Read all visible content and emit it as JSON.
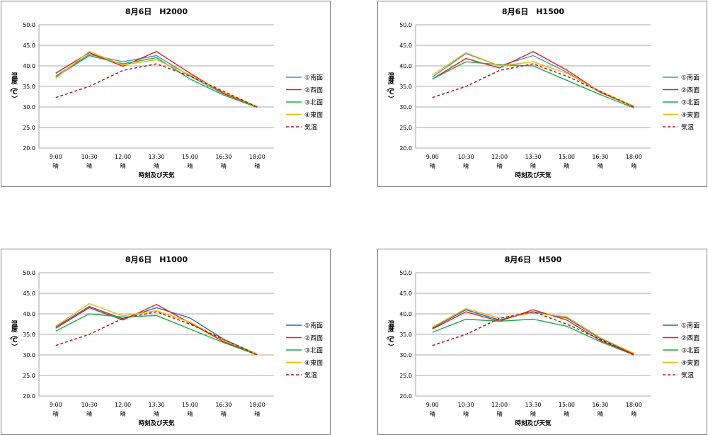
{
  "chart_data": [
    {
      "type": "line",
      "title": "8月6日　H2000",
      "xlabel": "時刻及び天気",
      "ylabel": "温度（℃）",
      "ylim": [
        20,
        50
      ],
      "yticks": [
        "20.0",
        "25.0",
        "30.0",
        "35.0",
        "40.0",
        "45.0",
        "50.0"
      ],
      "categories": [
        "9:00",
        "10:30",
        "12:00",
        "13:30",
        "15:00",
        "16:30",
        "18:00"
      ],
      "weather": [
        "晴",
        "晴",
        "晴",
        "晴",
        "晴",
        "晴",
        "晴"
      ],
      "grid": true,
      "legend": "right",
      "series": [
        {
          "name": "①南面",
          "color": "#4a90c8",
          "dash": false,
          "values": [
            37.5,
            42.8,
            41.0,
            42.5,
            37.5,
            33.2,
            30.1
          ]
        },
        {
          "name": "②西面",
          "color": "#e02020",
          "dash": false,
          "values": [
            38.2,
            43.2,
            39.9,
            43.5,
            38.2,
            33.3,
            30.1
          ]
        },
        {
          "name": "③北面",
          "color": "#20a84c",
          "dash": false,
          "values": [
            37.3,
            42.5,
            40.5,
            42.0,
            36.8,
            32.9,
            29.9
          ]
        },
        {
          "name": "④東面",
          "color": "#f2b705",
          "dash": false,
          "values": [
            37.0,
            43.5,
            40.2,
            41.5,
            37.8,
            33.6,
            30.1
          ]
        },
        {
          "name": "気温",
          "color": "#b01818",
          "dash": true,
          "values": [
            32.3,
            35.0,
            38.9,
            40.5,
            37.5,
            33.8,
            30.0
          ]
        }
      ]
    },
    {
      "type": "line",
      "title": "8月6日　H1500",
      "xlabel": "時刻及び天気",
      "ylabel": "温度（℃）",
      "ylim": [
        20,
        50
      ],
      "yticks": [
        "20.0",
        "25.0",
        "30.0",
        "35.0",
        "40.0",
        "45.0",
        "50.0"
      ],
      "categories": [
        "9:00",
        "10:30",
        "12:00",
        "13:30",
        "15:00",
        "16:30",
        "18:00"
      ],
      "weather": [
        "晴",
        "晴",
        "晴",
        "晴",
        "晴",
        "晴",
        "晴"
      ],
      "grid": true,
      "legend": "right",
      "series": [
        {
          "name": "①南面",
          "color": "#4a90c8",
          "dash": false,
          "values": [
            37.3,
            43.0,
            40.0,
            42.5,
            38.5,
            33.5,
            30.2
          ]
        },
        {
          "name": "②西面",
          "color": "#e02020",
          "dash": false,
          "values": [
            36.8,
            41.8,
            39.5,
            43.5,
            39.0,
            33.6,
            30.1
          ]
        },
        {
          "name": "③北面",
          "color": "#20a84c",
          "dash": false,
          "values": [
            36.8,
            41.0,
            40.3,
            40.0,
            36.5,
            33.0,
            29.8
          ]
        },
        {
          "name": "④東面",
          "color": "#f2b705",
          "dash": false,
          "values": [
            37.8,
            43.2,
            40.0,
            41.0,
            38.2,
            33.8,
            30.2
          ]
        },
        {
          "name": "気温",
          "color": "#b01818",
          "dash": true,
          "values": [
            32.3,
            35.0,
            38.9,
            40.5,
            37.5,
            33.8,
            30.0
          ]
        }
      ]
    },
    {
      "type": "line",
      "title": "8月6日　H1000",
      "xlabel": "時刻及び天気",
      "ylabel": "温度（℃）",
      "ylim": [
        20,
        50
      ],
      "yticks": [
        "20.0",
        "25.0",
        "30.0",
        "35.0",
        "40.0",
        "45.0",
        "50.0"
      ],
      "categories": [
        "9:00",
        "10:30",
        "12:00",
        "13:30",
        "15:00",
        "16:30",
        "18:00"
      ],
      "weather": [
        "晴",
        "晴",
        "晴",
        "晴",
        "晴",
        "晴",
        "晴"
      ],
      "grid": true,
      "legend": "right",
      "series": [
        {
          "name": "①南面",
          "color": "#1f6fb0",
          "dash": false,
          "values": [
            36.8,
            41.8,
            38.8,
            41.5,
            39.0,
            33.8,
            30.2
          ]
        },
        {
          "name": "②西面",
          "color": "#e02020",
          "dash": false,
          "values": [
            36.5,
            41.5,
            38.5,
            42.3,
            37.8,
            33.2,
            30.1
          ]
        },
        {
          "name": "③北面",
          "color": "#20a84c",
          "dash": false,
          "values": [
            35.8,
            40.0,
            39.2,
            39.6,
            36.3,
            33.0,
            30.0
          ]
        },
        {
          "name": "④東面",
          "color": "#f2b705",
          "dash": false,
          "values": [
            37.0,
            42.5,
            39.5,
            40.8,
            38.0,
            33.5,
            30.2
          ]
        },
        {
          "name": "気温",
          "color": "#b01818",
          "dash": true,
          "values": [
            32.3,
            35.0,
            38.9,
            40.5,
            37.5,
            33.8,
            30.0
          ]
        }
      ]
    },
    {
      "type": "line",
      "title": "8月6日　H500",
      "xlabel": "時刻及び天気",
      "ylabel": "温度（℃）",
      "ylim": [
        20,
        50
      ],
      "yticks": [
        "20.0",
        "25.0",
        "30.0",
        "35.0",
        "40.0",
        "45.0",
        "50.0"
      ],
      "categories": [
        "9:00",
        "10:30",
        "12:00",
        "13:30",
        "15:00",
        "16:30",
        "18:00"
      ],
      "weather": [
        "晴",
        "晴",
        "晴",
        "晴",
        "晴",
        "晴",
        "晴"
      ],
      "grid": true,
      "legend": "right",
      "series": [
        {
          "name": "①南面",
          "color": "#1f6fb0",
          "dash": false,
          "values": [
            36.5,
            41.0,
            38.5,
            40.5,
            39.0,
            34.0,
            30.3
          ]
        },
        {
          "name": "②西面",
          "color": "#e02020",
          "dash": false,
          "values": [
            36.3,
            40.5,
            38.2,
            41.0,
            38.5,
            33.5,
            30.2
          ]
        },
        {
          "name": "③北面",
          "color": "#20a84c",
          "dash": false,
          "values": [
            35.5,
            38.7,
            38.2,
            38.7,
            37.0,
            33.2,
            30.0
          ]
        },
        {
          "name": "④東面",
          "color": "#f2b705",
          "dash": false,
          "values": [
            36.8,
            41.3,
            39.0,
            40.2,
            39.3,
            34.2,
            30.4
          ]
        },
        {
          "name": "気温",
          "color": "#b01818",
          "dash": true,
          "values": [
            32.3,
            35.0,
            38.9,
            40.5,
            37.5,
            33.8,
            30.0
          ]
        }
      ]
    }
  ]
}
